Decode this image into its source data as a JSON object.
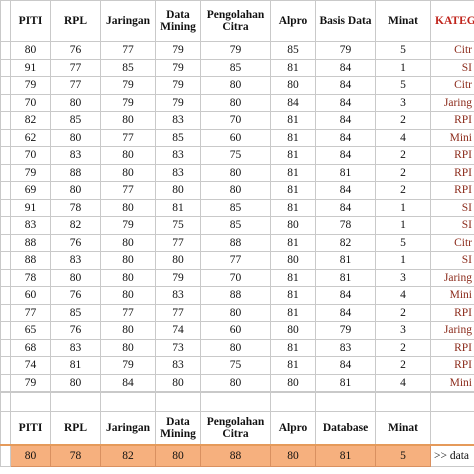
{
  "table": {
    "headers": [
      "PITI",
      "RPL",
      "Jaringan",
      "Data Mining",
      "Pengolahan Citra",
      "Alpro",
      "Basis Data",
      "Minat",
      "KATEG"
    ],
    "rows": [
      [
        80,
        76,
        77,
        79,
        79,
        85,
        79,
        5,
        "Citr"
      ],
      [
        91,
        77,
        85,
        79,
        85,
        81,
        84,
        1,
        "SI"
      ],
      [
        79,
        77,
        79,
        79,
        80,
        80,
        84,
        5,
        "Citr"
      ],
      [
        70,
        80,
        79,
        79,
        80,
        84,
        84,
        3,
        "Jaring"
      ],
      [
        82,
        85,
        80,
        83,
        70,
        81,
        84,
        2,
        "RPI"
      ],
      [
        62,
        80,
        77,
        85,
        60,
        81,
        84,
        4,
        "Mini"
      ],
      [
        70,
        83,
        80,
        83,
        75,
        81,
        84,
        2,
        "RPI"
      ],
      [
        79,
        88,
        80,
        83,
        80,
        81,
        81,
        2,
        "RPI"
      ],
      [
        69,
        80,
        77,
        80,
        80,
        81,
        84,
        2,
        "RPI"
      ],
      [
        91,
        78,
        80,
        81,
        85,
        81,
        84,
        1,
        "SI"
      ],
      [
        83,
        82,
        79,
        75,
        85,
        80,
        78,
        1,
        "SI"
      ],
      [
        88,
        76,
        80,
        77,
        88,
        81,
        82,
        5,
        "Citr"
      ],
      [
        88,
        83,
        80,
        80,
        77,
        80,
        81,
        1,
        "SI"
      ],
      [
        78,
        80,
        80,
        79,
        70,
        81,
        81,
        3,
        "Jaring"
      ],
      [
        60,
        76,
        80,
        83,
        88,
        81,
        84,
        4,
        "Mini"
      ],
      [
        77,
        85,
        77,
        77,
        80,
        81,
        84,
        2,
        "RPI"
      ],
      [
        65,
        76,
        80,
        74,
        60,
        80,
        79,
        3,
        "Jaring"
      ],
      [
        68,
        83,
        80,
        73,
        80,
        81,
        83,
        2,
        "RPI"
      ],
      [
        74,
        81,
        79,
        83,
        75,
        81,
        84,
        2,
        "RPI"
      ],
      [
        79,
        80,
        84,
        80,
        80,
        80,
        81,
        4,
        "Mini"
      ]
    ]
  },
  "summary": {
    "headers": [
      "PITI",
      "RPL",
      "Jaringan",
      "Data Mining",
      "Pengolahan Citra",
      "Alpro",
      "Database",
      "Minat"
    ],
    "values": [
      80,
      78,
      82,
      80,
      88,
      80,
      81,
      5
    ],
    "note": ">> data"
  }
}
